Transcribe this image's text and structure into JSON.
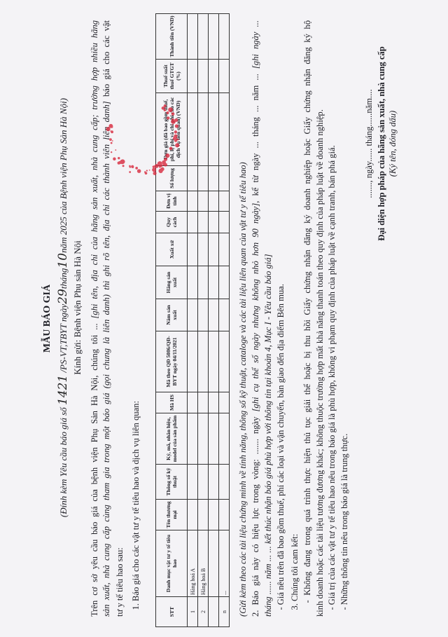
{
  "header": {
    "title": "MẪU BÁO GIÁ",
    "subtitle": [
      {
        "t": "(Đính kèm Yêu cầu báo giá số ",
        "s": "i"
      },
      {
        "t": "1421",
        "s": "hw"
      },
      {
        "t": " /PS-VT,TBYT ngày",
        "s": "i"
      },
      {
        "t": "29",
        "s": "hw"
      },
      {
        "t": "tháng",
        "s": "i"
      },
      {
        "t": "10",
        "s": "hw"
      },
      {
        "t": "năm 2025 của Bệnh viện Phụ Sản Hà Nội)",
        "s": "i"
      }
    ],
    "recipient": "Kính gửi: Bệnh viện Phụ sản Hà Nội"
  },
  "body": {
    "lines": [
      {
        "top": 0,
        "full": true,
        "segments": [
          {
            "t": "Trên cơ sở yêu cầu báo giá của bệnh viện Phụ Sản Hà Nội, chúng tôi ... ",
            "s": ""
          },
          {
            "t": "[ghi tên, địa chỉ của hãng sản xuất, nhà cung cấp; trường hợp nhiều hãng",
            "s": "i"
          }
        ]
      },
      {
        "top": 1,
        "full": true,
        "segments": [
          {
            "t": "sản xuất, nhà cung cấp cùng tham gia trong một báo giá (gọi chung là liên danh) thì ghi rõ tên, địa chỉ các thành viên liên danh]",
            "s": "i"
          },
          {
            "t": " báo giá cho các vật",
            "s": ""
          }
        ]
      },
      {
        "top": 2,
        "full": false,
        "segments": [
          {
            "t": "tư y tế tiêu hao sau:",
            "s": ""
          }
        ]
      },
      {
        "top": 3,
        "full": false,
        "segments": [
          {
            "t": "   1. Báo giá cho các vật tư y tế tiêu hao và dịch vụ liên quan:",
            "s": ""
          }
        ]
      },
      {
        "top": 4,
        "full": false,
        "segments": [
          {
            "t": "(Gửi kèm theo các tài liệu chứng minh về tính năng, thông số kỹ thuật, catalogе và các tài liệu liên quan của vật tư y tế tiêu hao)",
            "s": "i"
          }
        ]
      },
      {
        "top": 5,
        "full": true,
        "segments": [
          {
            "t": "2. Báo giá này có hiệu lực trong vòng: ....... ngày ",
            "s": ""
          },
          {
            "t": "[ghi cụ thể số ngày nhưng không nhỏ hơn 90 ngày]",
            "s": "i"
          },
          {
            "t": ", kể từ ngày ... tháng ... năm ... ",
            "s": ""
          },
          {
            "t": "[ghi ngày ...",
            "s": "i"
          }
        ]
      },
      {
        "top": 6,
        "full": false,
        "segments": [
          {
            "t": "tháng ...... năm ... ... kết thúc nhận báo giá phù hợp với thông tin tại khoản 4, Mục I - Yêu cầu báo giá]",
            "s": "i"
          }
        ]
      },
      {
        "top": 7,
        "full": false,
        "segments": [
          {
            "t": "   - Giá nêu trên đã bao gồm thuế, phí các loại và vận chuyển, bàn giao đến địa điểm Bên mua.",
            "s": ""
          }
        ]
      },
      {
        "top": 8,
        "full": false,
        "segments": [
          {
            "t": "   3. Chúng tôi cam kết:",
            "s": ""
          }
        ]
      },
      {
        "top": 9,
        "full": true,
        "segments": [
          {
            "t": "   - Không đang trong quá trình thực hiện thủ tục giải thể hoặc bị thu hồi Giấy chứng nhận đăng ký doanh nghiệp hoặc Giấy chứng nhận đăng ký hộ",
            "s": ""
          }
        ]
      },
      {
        "top": 10,
        "full": false,
        "segments": [
          {
            "t": "kinh doanh hoặc các tài liệu tương đương khác; không thuộc trường hợp mất khả năng thanh toán theo quy định của pháp luật về doanh nghiệp.",
            "s": ""
          }
        ]
      },
      {
        "top": 11,
        "full": false,
        "segments": [
          {
            "t": "   - Giá trị của các vật tư y tế tiêu hao nêu trong báo giá là phù hợp, không vi phạm quy định của pháp luật về cạnh tranh, bán phá giá.",
            "s": ""
          }
        ]
      },
      {
        "top": 12,
        "full": false,
        "segments": [
          {
            "t": "   - Những thông tin nêu trong báo giá là trung thực.",
            "s": ""
          }
        ]
      }
    ]
  },
  "table": {
    "columns": [
      "STT",
      "Danh mục vật tư y tế tiêu hao",
      "Tên thương mại",
      "Thông số kỹ thuật",
      "Ký, mã, nhãn hiệu, model của sản phẩm",
      "Mã HS",
      "Mã theo QĐ 5086/QĐ-BYT ngày 04/11/2021",
      "Năm sản xuất",
      "Hãng sản xuất",
      "Xuất xứ",
      "Quy cách",
      "Đơn vị tính",
      "Số lượng",
      "Đơn giá (đã bao gồm thuế, phí, lệ phí và chi phí cho các dịch vụ liên quan) (VND)",
      "Thuế suất thuế GTGT (%)",
      "Thành tiền (VND)"
    ],
    "rows": [
      [
        "1",
        "Hàng hoá A",
        "",
        "",
        "",
        "",
        "",
        "",
        "",
        "",
        "",
        "",
        "",
        "",
        "",
        ""
      ],
      [
        "2",
        "Hàng hoá B",
        "",
        "",
        "",
        "",
        "",
        "",
        "",
        "",
        "",
        "",
        "",
        "",
        "",
        ""
      ],
      [
        "",
        "",
        "",
        "",
        "",
        "",
        "",
        "",
        "",
        "",
        "",
        "",
        "",
        "",
        "",
        ""
      ],
      [
        "n",
        "...",
        "",
        "",
        "",
        "",
        "",
        "",
        "",
        "",
        "",
        "",
        "",
        "",
        "",
        ""
      ]
    ]
  },
  "signature": {
    "date_line": "......., ngày...... tháng......năm....",
    "title": "Đại diện hợp pháp của hãng sản xuất, nhà cung cấp",
    "note": "(Ký tên, đóng dấu)"
  },
  "colors": {
    "stamp": "#d8283c",
    "ink": "#1d1d24"
  }
}
